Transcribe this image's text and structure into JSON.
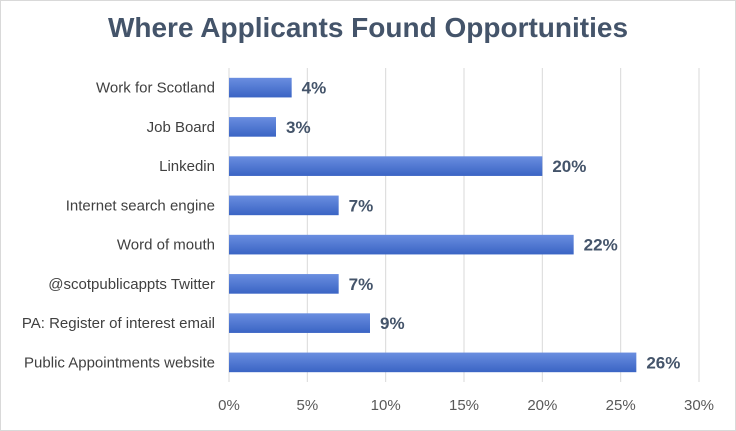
{
  "chart_data": {
    "type": "bar",
    "orientation": "horizontal",
    "title": "Where Applicants Found Opportunities",
    "categories": [
      "Work for Scotland",
      "Job Board",
      "Linkedin",
      "Internet search engine",
      "Word of mouth",
      "@scotpublicappts Twitter",
      "PA: Register of interest email",
      "Public Appointments website"
    ],
    "values": [
      4,
      3,
      20,
      7,
      22,
      7,
      9,
      26
    ],
    "data_labels": [
      "4%",
      "3%",
      "20%",
      "7%",
      "22%",
      "7%",
      "9%",
      "26%"
    ],
    "xlim": [
      0,
      30
    ],
    "x_ticks": [
      0,
      5,
      10,
      15,
      20,
      25,
      30
    ],
    "x_tick_labels": [
      "0%",
      "5%",
      "10%",
      "15%",
      "20%",
      "25%",
      "30%"
    ],
    "grid": true,
    "legend": "none",
    "bar_color": "#3a64c4",
    "bar_color_light": "#6a8ee0"
  }
}
